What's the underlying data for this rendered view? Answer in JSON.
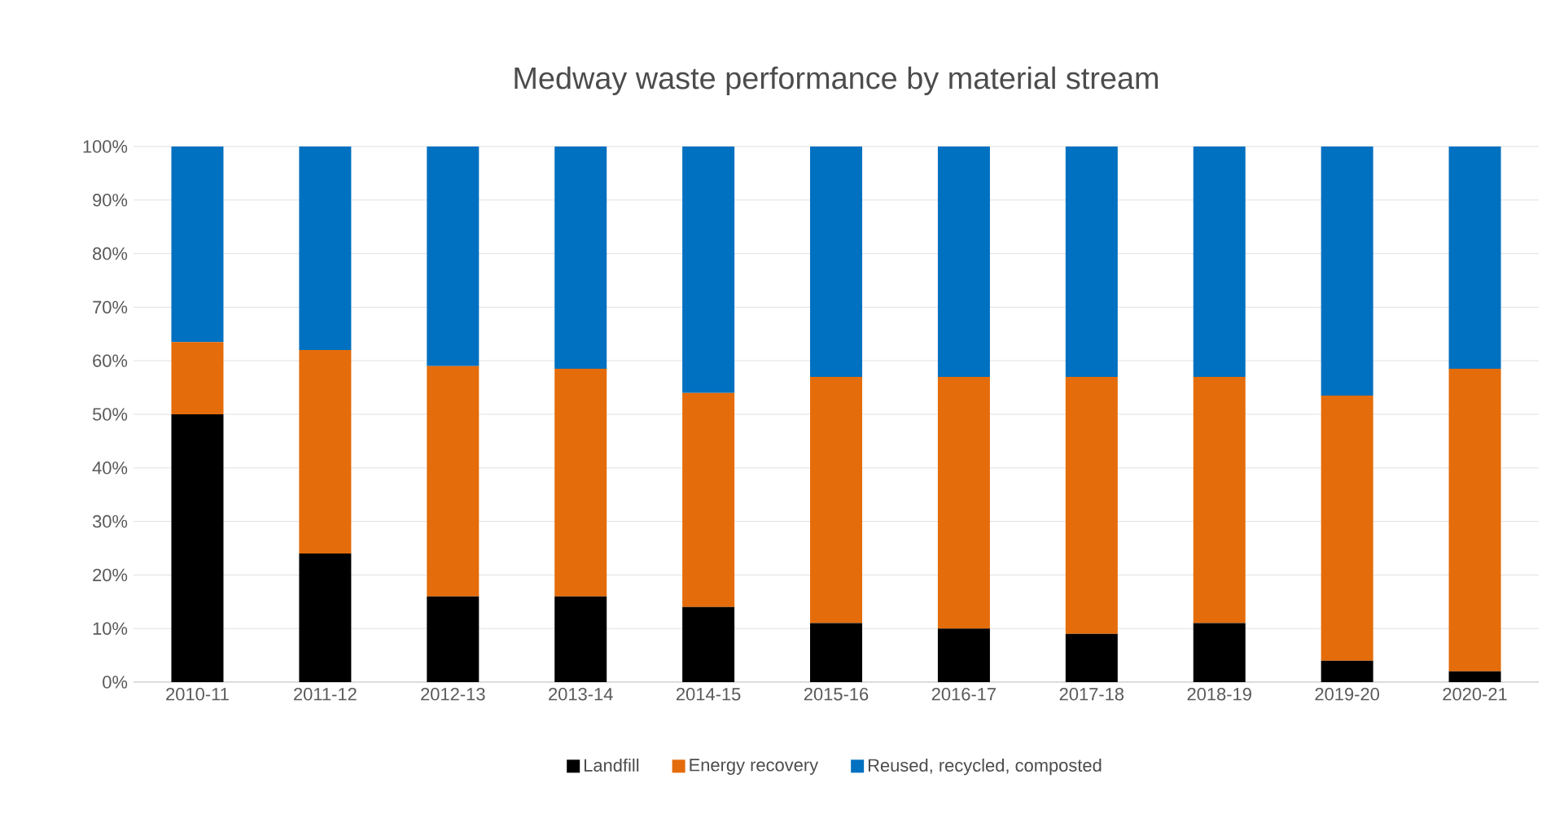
{
  "chart_data": {
    "type": "bar",
    "stacked": true,
    "title": "Medway waste performance by material stream",
    "categories": [
      "2010-11",
      "2011-12",
      "2012-13",
      "2013-14",
      "2014-15",
      "2015-16",
      "2016-17",
      "2017-18",
      "2018-19",
      "2019-20",
      "2020-21"
    ],
    "series": [
      {
        "name": "Landfill",
        "color": "#000000",
        "values": [
          50,
          24,
          16,
          16,
          14,
          11,
          10,
          9,
          11,
          4,
          2
        ]
      },
      {
        "name": "Energy recovery",
        "color": "#e46c0a",
        "values": [
          13.5,
          38,
          43,
          42.5,
          40,
          46,
          47,
          48,
          46,
          49.5,
          56.5
        ]
      },
      {
        "name": "Reused, recycled, composted",
        "color": "#0070c0",
        "values": [
          36.5,
          38,
          41,
          41.5,
          46,
          43,
          43,
          43,
          43,
          46.5,
          41.5
        ]
      }
    ],
    "ylim": [
      0,
      100
    ],
    "yticks": [
      {
        "value": 0,
        "label": "0%"
      },
      {
        "value": 10,
        "label": "10%"
      },
      {
        "value": 20,
        "label": "20%"
      },
      {
        "value": 30,
        "label": "30%"
      },
      {
        "value": 40,
        "label": "40%"
      },
      {
        "value": 50,
        "label": "50%"
      },
      {
        "value": 60,
        "label": "60%"
      },
      {
        "value": 70,
        "label": "70%"
      },
      {
        "value": 80,
        "label": "80%"
      },
      {
        "value": 90,
        "label": "90%"
      },
      {
        "value": 100,
        "label": "100%"
      }
    ],
    "grid": "y",
    "legend": "bottom"
  }
}
